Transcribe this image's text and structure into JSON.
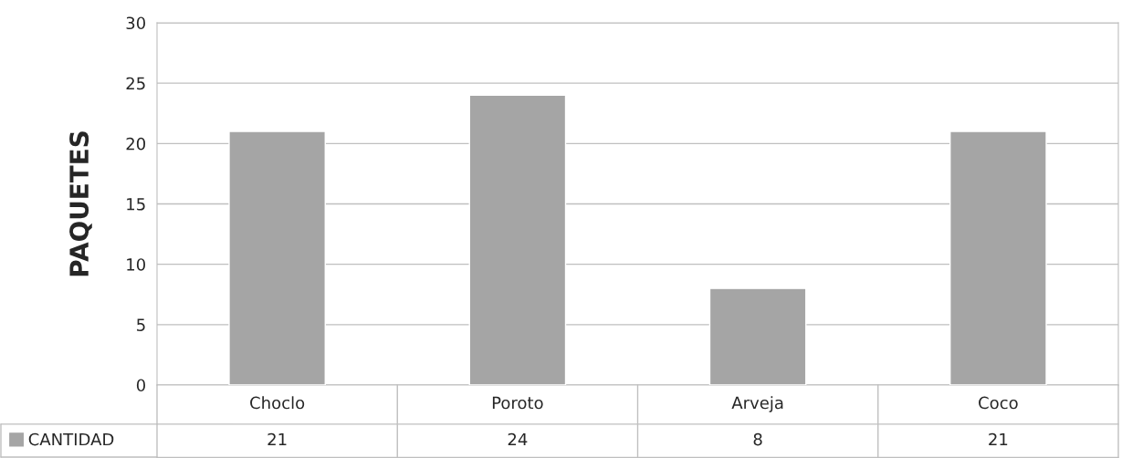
{
  "chart_data": {
    "type": "bar",
    "ylabel": "PAQUETES",
    "categories": [
      "Choclo",
      "Poroto",
      "Arveja",
      "Coco"
    ],
    "series": [
      {
        "name": "CANTIDAD",
        "color": "#a5a5a5",
        "values": [
          21,
          24,
          8,
          21
        ]
      }
    ],
    "ylim": [
      0,
      30
    ],
    "yticks": [
      0,
      5,
      10,
      15,
      20,
      25,
      30
    ],
    "grid": "y",
    "data_labels": true,
    "legend": "bottom left"
  }
}
